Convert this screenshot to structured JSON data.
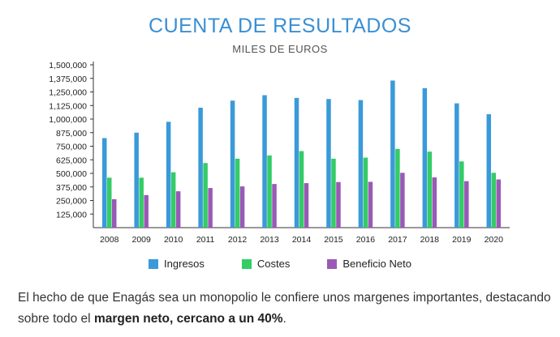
{
  "chart_data": {
    "type": "bar",
    "title": "CUENTA DE RESULTADOS",
    "subtitle": "MILES DE EUROS",
    "categories": [
      "2008",
      "2009",
      "2010",
      "2011",
      "2012",
      "2013",
      "2014",
      "2015",
      "2016",
      "2017",
      "2018",
      "2019",
      "2020"
    ],
    "series": [
      {
        "name": "Ingresos",
        "color": "#3a9ad9",
        "values": [
          825000,
          875000,
          975000,
          1105000,
          1170000,
          1220000,
          1195000,
          1185000,
          1175000,
          1355000,
          1285000,
          1145000,
          1045000
        ]
      },
      {
        "name": "Costes",
        "color": "#33cc66",
        "values": [
          460000,
          460000,
          510000,
          595000,
          635000,
          665000,
          705000,
          635000,
          645000,
          725000,
          700000,
          610000,
          505000
        ]
      },
      {
        "name": "Beneficio Neto",
        "color": "#9b59b6",
        "values": [
          262000,
          300000,
          335000,
          365000,
          380000,
          402000,
          410000,
          420000,
          422000,
          505000,
          463000,
          428000,
          444000
        ]
      }
    ],
    "yticks": [
      "1,500,000",
      "1,375,000",
      "1,250,000",
      "1,125,000",
      "1,000,000",
      "875,000",
      "750,000",
      "625,000",
      "500,000",
      "375,000",
      "250,000",
      "125,000"
    ],
    "ylim": [
      0,
      1500000
    ],
    "legend_position": "bottom",
    "grid": false
  },
  "caption": {
    "part1": "El hecho de que Enagás sea un monopolio le confiere unos margenes importantes, destacando sobre todo el ",
    "bold": "margen neto, cercano a un 40%",
    "part2": "."
  }
}
